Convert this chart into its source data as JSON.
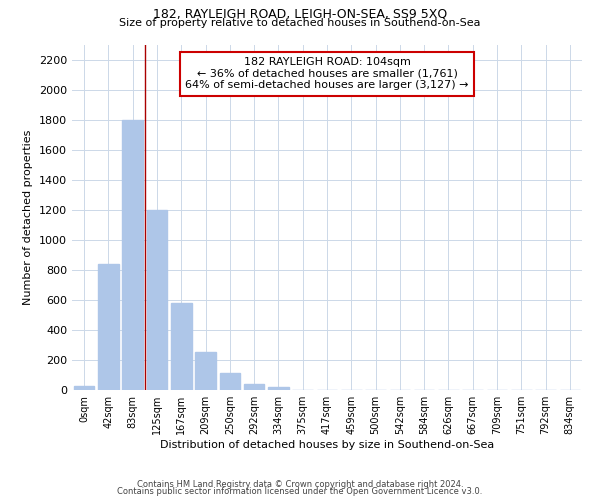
{
  "title1": "182, RAYLEIGH ROAD, LEIGH-ON-SEA, SS9 5XQ",
  "title2": "Size of property relative to detached houses in Southend-on-Sea",
  "xlabel": "Distribution of detached houses by size in Southend-on-Sea",
  "ylabel": "Number of detached properties",
  "bar_labels": [
    "0sqm",
    "42sqm",
    "83sqm",
    "125sqm",
    "167sqm",
    "209sqm",
    "250sqm",
    "292sqm",
    "334sqm",
    "375sqm",
    "417sqm",
    "459sqm",
    "500sqm",
    "542sqm",
    "584sqm",
    "626sqm",
    "667sqm",
    "709sqm",
    "751sqm",
    "792sqm",
    "834sqm"
  ],
  "bar_values": [
    25,
    840,
    1800,
    1200,
    580,
    255,
    115,
    40,
    20,
    0,
    0,
    0,
    0,
    0,
    0,
    0,
    0,
    0,
    0,
    0,
    0
  ],
  "bar_color": "#aec6e8",
  "vline_x": 2.5,
  "vline_color": "#aa0000",
  "annotation_line1": "182 RAYLEIGH ROAD: 104sqm",
  "annotation_line2": "← 36% of detached houses are smaller (1,761)",
  "annotation_line3": "64% of semi-detached houses are larger (3,127) →",
  "annotation_box_color": "#ffffff",
  "annotation_box_edge": "#cc0000",
  "ylim": [
    0,
    2300
  ],
  "yticks": [
    0,
    200,
    400,
    600,
    800,
    1000,
    1200,
    1400,
    1600,
    1800,
    2000,
    2200
  ],
  "footer1": "Contains HM Land Registry data © Crown copyright and database right 2024.",
  "footer2": "Contains public sector information licensed under the Open Government Licence v3.0.",
  "bg_color": "#ffffff",
  "grid_color": "#ccd8e8"
}
